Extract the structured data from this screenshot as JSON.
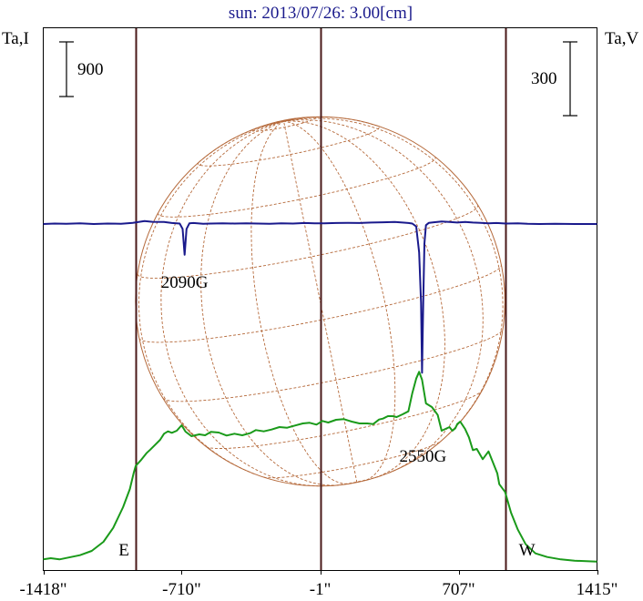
{
  "chart_data": {
    "type": "line",
    "title": "sun: 2013/07/26: 3.00[cm]",
    "left_axis_label": "Ta,I",
    "right_axis_label": "Ta,V",
    "left_scale_bar": "900",
    "right_scale_bar": "300",
    "x_tick_labels": [
      "-1418\"",
      "-710\"",
      "-1\"",
      "707\"",
      "1415\""
    ],
    "x_tick_values": [
      -1418,
      -710,
      -1,
      707,
      1415
    ],
    "xlim": [
      -1418,
      1415
    ],
    "limb_markers": [
      {
        "label": "E",
        "x": -945
      },
      {
        "label": "W",
        "x": 945
      }
    ],
    "center_line_x": -1,
    "solar_disk": {
      "radius_arcsec": 945,
      "grid": true,
      "color": "#b5693a"
    },
    "series": [
      {
        "name": "Ta,I",
        "color": "#1a9a1a",
        "x": [
          -1418,
          -1380,
          -1335,
          -1290,
          -1230,
          -1170,
          -1110,
          -1060,
          -1010,
          -975,
          -955,
          -945,
          -920,
          -890,
          -870,
          -845,
          -820,
          -800,
          -780,
          -760,
          -735,
          -710,
          -690,
          -660,
          -620,
          -590,
          -560,
          -520,
          -480,
          -440,
          -400,
          -360,
          -330,
          -290,
          -250,
          -210,
          -170,
          -130,
          -90,
          -55,
          -20,
          10,
          40,
          80,
          120,
          160,
          200,
          240,
          270,
          300,
          320,
          345,
          370,
          390,
          420,
          450,
          470,
          490,
          505,
          520,
          540,
          570,
          600,
          620,
          640,
          660,
          675,
          690,
          700,
          715,
          740,
          760,
          780,
          800,
          830,
          860,
          890,
          905,
          915,
          945,
          975,
          1010,
          1050,
          1100,
          1160,
          1230,
          1300,
          1360,
          1415
        ],
        "y": [
          40,
          60,
          40,
          70,
          110,
          180,
          330,
          560,
          900,
          1200,
          1470,
          1580,
          1670,
          1790,
          1850,
          1930,
          2010,
          2110,
          2150,
          2125,
          2160,
          2250,
          2145,
          2070,
          2100,
          2085,
          2140,
          2130,
          2080,
          2110,
          2085,
          2120,
          2170,
          2150,
          2180,
          2220,
          2210,
          2245,
          2280,
          2290,
          2260,
          2320,
          2295,
          2340,
          2350,
          2310,
          2280,
          2280,
          2270,
          2345,
          2360,
          2400,
          2400,
          2385,
          2430,
          2480,
          2780,
          3020,
          3130,
          3000,
          2610,
          2550,
          2420,
          2160,
          2190,
          2220,
          2160,
          2200,
          2270,
          2310,
          2190,
          2050,
          1840,
          1860,
          1690,
          1820,
          1580,
          1460,
          1280,
          1150,
          810,
          530,
          290,
          140,
          80,
          40,
          20,
          10,
          5
        ]
      },
      {
        "name": "Ta,V",
        "color": "#1a1a8c",
        "x": [
          -1418,
          -1360,
          -1300,
          -1230,
          -1160,
          -1090,
          -1020,
          -960,
          -900,
          -860,
          -800,
          -760,
          -720,
          -705,
          -695,
          -685,
          -670,
          -650,
          -600,
          -560,
          -500,
          -440,
          -380,
          -320,
          -260,
          -200,
          -140,
          -80,
          -30,
          20,
          80,
          140,
          200,
          260,
          320,
          380,
          420,
          450,
          470,
          490,
          505,
          515,
          520,
          526,
          532,
          540,
          555,
          580,
          620,
          660,
          700,
          740,
          780,
          820,
          860,
          900,
          950,
          1010,
          1060,
          1120,
          1200,
          1300,
          1415
        ],
        "y": [
          0,
          2,
          1,
          3,
          0,
          2,
          1,
          5,
          12,
          9,
          8,
          4,
          2,
          -20,
          -125,
          -20,
          3,
          4,
          1,
          2,
          3,
          2,
          3,
          2,
          1,
          3,
          2,
          4,
          3,
          3,
          4,
          5,
          4,
          6,
          7,
          8,
          6,
          4,
          2,
          -10,
          -115,
          -320,
          -605,
          -320,
          -80,
          -5,
          5,
          7,
          10,
          8,
          6,
          8,
          6,
          5,
          3,
          4,
          2,
          3,
          1,
          0,
          1,
          0,
          0
        ]
      }
    ],
    "annotations": [
      {
        "text": "2090G",
        "x": -700
      },
      {
        "text": "2550G",
        "x": 520
      }
    ]
  }
}
